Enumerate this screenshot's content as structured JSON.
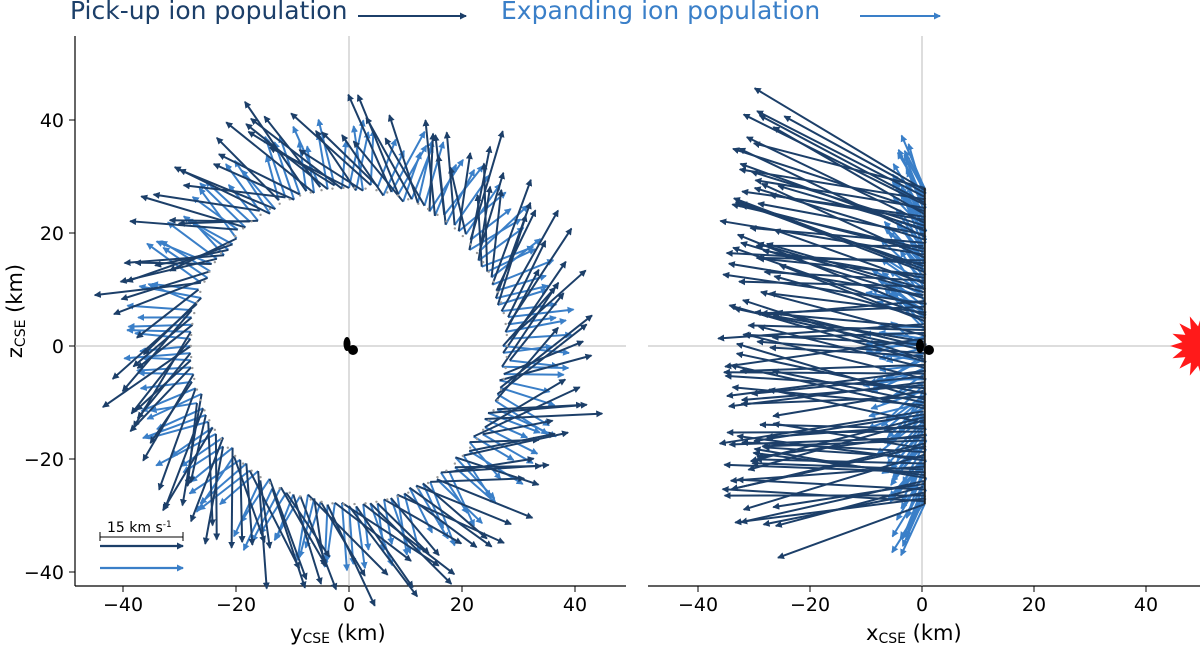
{
  "legend": {
    "pickup_label": "Pick-up ion population",
    "expanding_label": "Expanding ion population",
    "pickup_color": "#1c3f69",
    "expanding_color": "#3a7fc8"
  },
  "scale_bar": {
    "label": "15 km s",
    "superscript": "-1",
    "value_kms": 15
  },
  "chart_data": [
    {
      "type": "quiver",
      "panel": "left",
      "xlabel": "y",
      "xlabel_sub": "CSE",
      "xlabel_unit": " (km)",
      "ylabel": "z",
      "ylabel_sub": "CSE",
      "ylabel_unit": " (km)",
      "xlim": [
        -48,
        49
      ],
      "ylim": [
        -42,
        53
      ],
      "xticks": [
        -40,
        -20,
        0,
        20,
        40
      ],
      "yticks": [
        -40,
        -20,
        0,
        20,
        40
      ],
      "ring_radius_km": 28,
      "description_series": [
        {
          "name": "Pick-up ion population",
          "direction": "tangential-anticlockwise with outward component",
          "speed_kms": 16
        },
        {
          "name": "Expanding ion population",
          "direction": "radially outward",
          "speed_kms": 10
        }
      ]
    },
    {
      "type": "quiver",
      "panel": "right",
      "xlabel": "x",
      "xlabel_sub": "CSE",
      "xlabel_unit": " (km)",
      "xlim": [
        -49,
        49
      ],
      "ylim": [
        -42,
        53
      ],
      "xticks": [
        -40,
        -20,
        0,
        20,
        40
      ],
      "yticks": [],
      "line_x_km": 0.5,
      "line_z_range_km": [
        -28,
        28
      ],
      "sun_x_km": 50,
      "description_series": [
        {
          "name": "Pick-up ion population",
          "direction": "anti-sunward (toward -x) with z component",
          "speed_kms": 30
        },
        {
          "name": "Expanding ion population",
          "direction": "outward in z, slight -x",
          "speed_kms": 10
        }
      ]
    }
  ]
}
